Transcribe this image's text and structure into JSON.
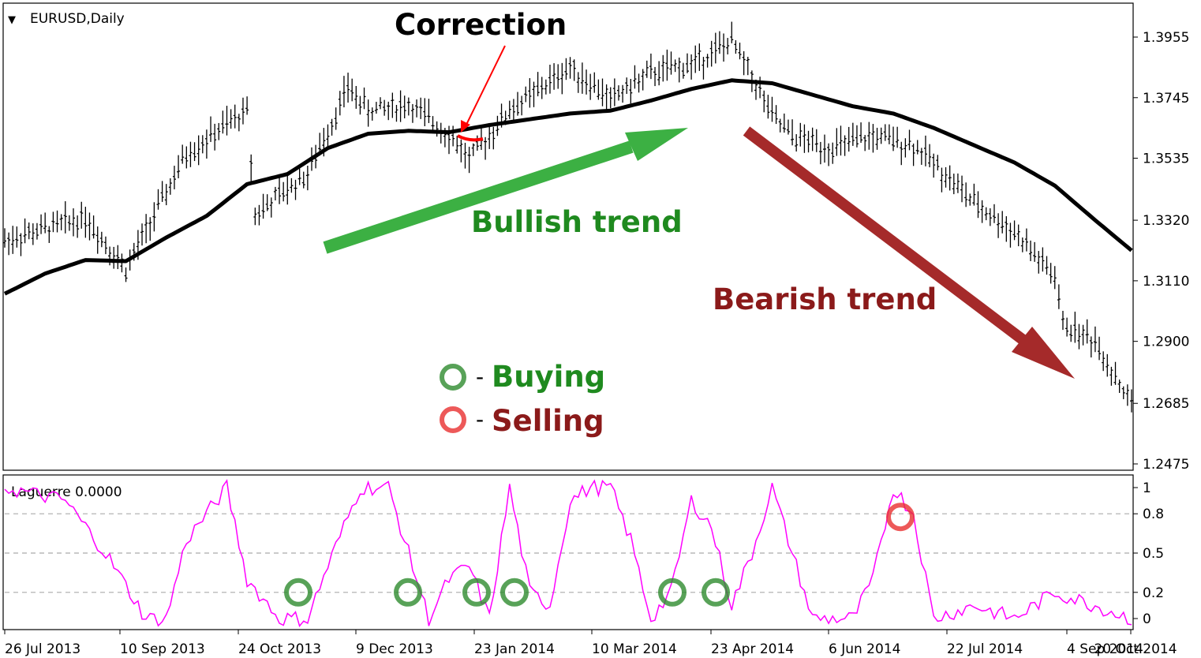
{
  "chart_data": [
    {
      "type": "bar",
      "title": "EURUSD,Daily",
      "symbol_menu_icon": "triangle-down-icon",
      "y_ticks": [
        "1.3955",
        "1.3745",
        "1.3535",
        "1.3320",
        "1.3110",
        "1.2900",
        "1.2685",
        "1.2475"
      ],
      "ylim": [
        1.2475,
        1.406
      ],
      "x_tick_labels": [
        "26 Jul 2013",
        "10 Sep 2013",
        "24 Oct 2013",
        "9 Dec 2013",
        "23 Jan 2014",
        "10 Mar 2014",
        "23 Apr 2014",
        "6 Jun 2014",
        "22 Jul 2014",
        "4 Sep 2014",
        "20 Oct 2014"
      ],
      "series": [
        {
          "kind": "moving-average",
          "color": "#000000",
          "x_index": [
            0,
            10,
            20,
            30,
            40,
            50,
            60,
            70,
            80,
            90,
            100,
            110,
            120,
            130,
            140,
            150,
            160,
            170,
            180,
            190,
            200,
            210,
            220,
            230,
            240,
            250,
            260,
            270,
            279
          ],
          "values": [
            1.3065,
            1.3135,
            1.3182,
            1.3178,
            1.326,
            1.3335,
            1.3445,
            1.348,
            1.357,
            1.362,
            1.363,
            1.3625,
            1.365,
            1.367,
            1.369,
            1.37,
            1.3735,
            1.3775,
            1.3805,
            1.3795,
            1.3755,
            1.3715,
            1.369,
            1.364,
            1.358,
            1.352,
            1.344,
            1.332,
            1.3215
          ]
        }
      ],
      "annotations": {
        "correction": "Correction",
        "bullish": "Bullish trend",
        "bearish": "Bearish trend",
        "legend_buy_dash": "-",
        "legend_buy": "Buying",
        "legend_sell_dash": "-",
        "legend_sell": "Selling"
      },
      "colors": {
        "bullish": "#1f8a1f",
        "bearish": "#8b1a1a",
        "bull_arrow": "#3cb043",
        "bear_arrow": "#a52a2a",
        "correction_arrow": "#ff0000"
      }
    },
    {
      "type": "line",
      "title": "Laguerre 0.0000",
      "ylim": [
        0,
        1
      ],
      "y_ticks": [
        "1",
        "0.8",
        "0.5",
        "0.2",
        "0"
      ],
      "color": "#ff00ff",
      "buy_signals": [
        0.2,
        0.2,
        0.2,
        0.2,
        0.2,
        0.2
      ],
      "sell_signals": [
        0.8
      ],
      "buy_signal_color": "#2e8b2e",
      "sell_signal_color": "#e83030"
    }
  ]
}
